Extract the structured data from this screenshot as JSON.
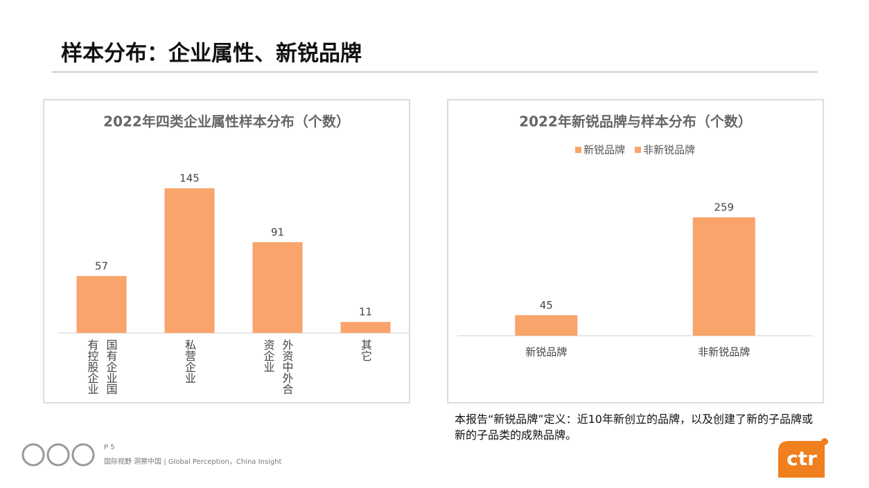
{
  "title": "样本分布：企业属性、新锐品牌",
  "chart_data": [
    {
      "type": "bar",
      "title": "2022年四类企业属性样本分布（个数）",
      "categories": [
        "国有企业国有控股企业",
        "私营企业",
        "外资中外合资企业",
        "其它"
      ],
      "values": [
        57,
        145,
        91,
        11
      ],
      "color": "#f9a46b",
      "vertical_labels": true
    },
    {
      "type": "bar",
      "title": "2022年新锐品牌与样本分布（个数）",
      "categories": [
        "新锐品牌",
        "非新锐品牌"
      ],
      "values": [
        45,
        259
      ],
      "color": "#f9a46b",
      "legend": true
    }
  ],
  "footnote": "本报告“新锐品牌”定义：近10年新创立的品牌，以及创建了新的子品牌或新的子品类的成熟品牌。",
  "footer": {
    "page": "P 5",
    "tagline": "国际视野 洞察中国 | Global Perception，China Insight"
  },
  "logo": "ctr"
}
